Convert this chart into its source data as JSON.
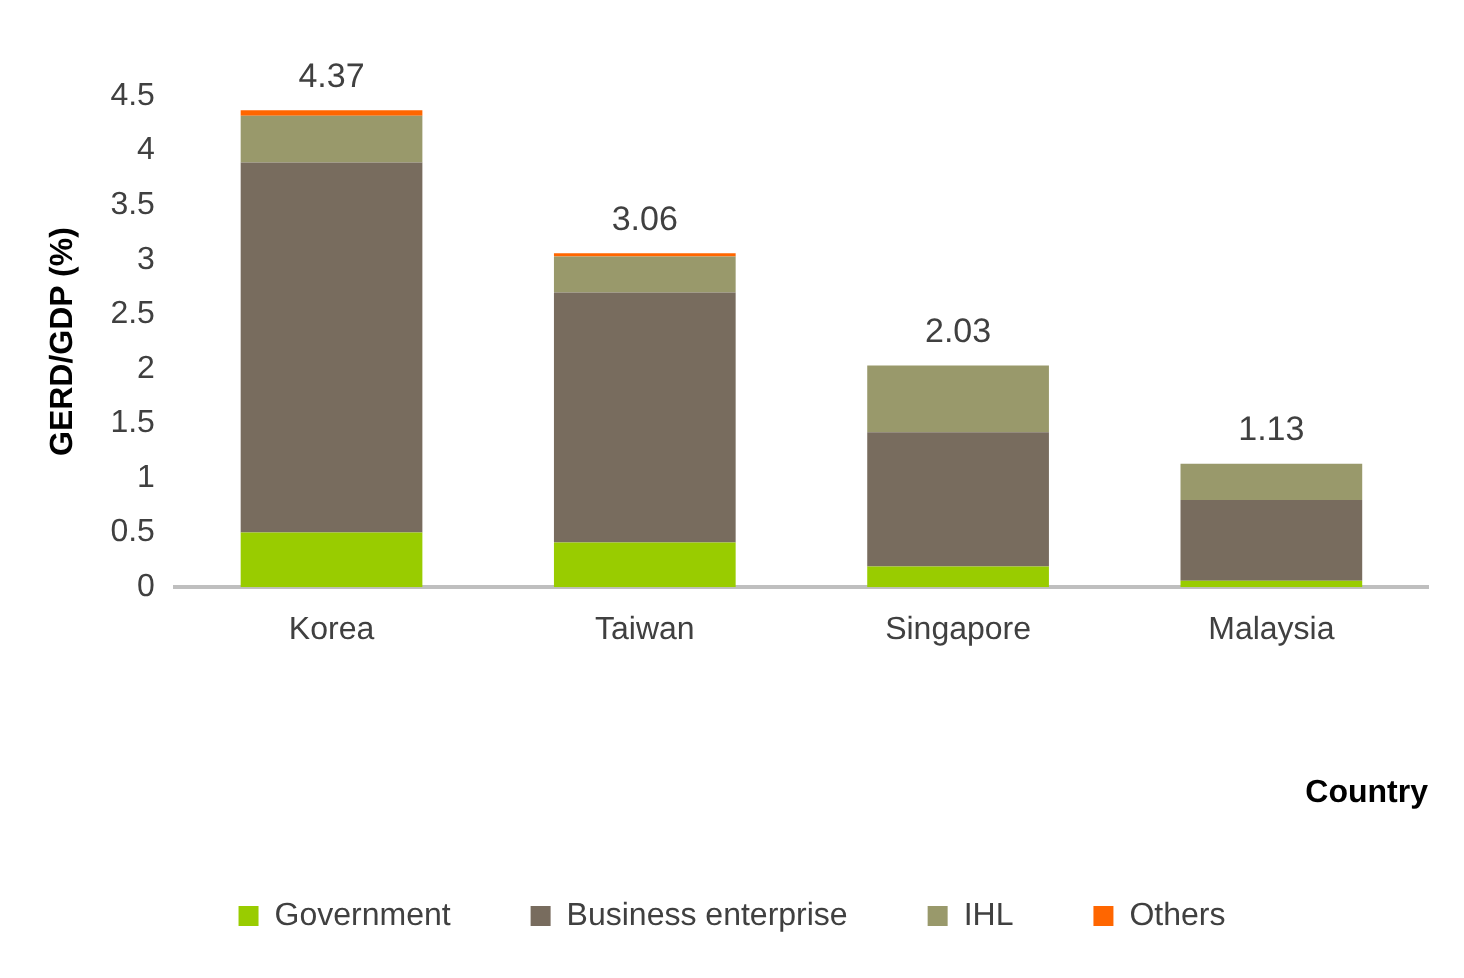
{
  "chart_data": {
    "type": "bar",
    "stacked": true,
    "xlabel": "Country",
    "ylabel": "GERD/GDP (%)",
    "categories": [
      "Korea",
      "Taiwan",
      "Singapore",
      "Malaysia"
    ],
    "series": [
      {
        "name": "Government",
        "color": "#99cc00",
        "values": [
          0.5,
          0.41,
          0.19,
          0.06
        ]
      },
      {
        "name": "Business enterprise",
        "color": "#786c5e",
        "values": [
          3.39,
          2.29,
          1.23,
          0.74
        ]
      },
      {
        "name": "IHL",
        "color": "#99996b",
        "values": [
          0.43,
          0.33,
          0.61,
          0.33
        ]
      },
      {
        "name": "Others",
        "color": "#ff6600",
        "values": [
          0.05,
          0.03,
          0,
          0
        ]
      }
    ],
    "totals": [
      "4.37",
      "3.06",
      "2.03",
      "1.13"
    ],
    "ylim": [
      0,
      4.5
    ],
    "yticks": [
      0,
      0.5,
      1,
      1.5,
      2,
      2.5,
      3,
      3.5,
      4,
      4.5
    ],
    "grid": false,
    "legend": "bottom"
  }
}
